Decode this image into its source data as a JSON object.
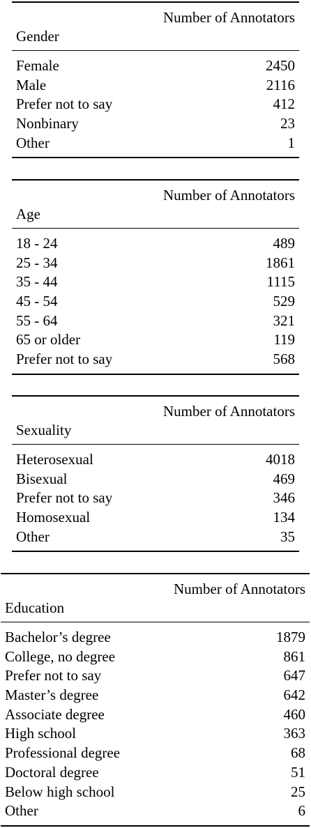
{
  "tables": [
    {
      "category": "Gender",
      "column": "Number of Annotators",
      "rows": [
        {
          "label": "Female",
          "value": "2450"
        },
        {
          "label": "Male",
          "value": "2116"
        },
        {
          "label": "Prefer not to say",
          "value": "412"
        },
        {
          "label": "Nonbinary",
          "value": "23"
        },
        {
          "label": "Other",
          "value": "1"
        }
      ]
    },
    {
      "category": "Age",
      "column": "Number of Annotators",
      "rows": [
        {
          "label": "18 - 24",
          "value": "489"
        },
        {
          "label": "25 - 34",
          "value": "1861"
        },
        {
          "label": "35 - 44",
          "value": "1115"
        },
        {
          "label": "45 - 54",
          "value": "529"
        },
        {
          "label": "55 - 64",
          "value": "321"
        },
        {
          "label": "65 or older",
          "value": "119"
        },
        {
          "label": "Prefer not to say",
          "value": "568"
        }
      ]
    },
    {
      "category": "Sexuality",
      "column": "Number of Annotators",
      "rows": [
        {
          "label": "Heterosexual",
          "value": "4018"
        },
        {
          "label": "Bisexual",
          "value": "469"
        },
        {
          "label": "Prefer not to say",
          "value": "346"
        },
        {
          "label": "Homosexual",
          "value": "134"
        },
        {
          "label": "Other",
          "value": "35"
        }
      ]
    },
    {
      "category": "Education",
      "column": "Number of Annotators",
      "rows": [
        {
          "label": "Bachelor’s degree",
          "value": "1879"
        },
        {
          "label": "College, no degree",
          "value": "861"
        },
        {
          "label": "Prefer not to say",
          "value": "647"
        },
        {
          "label": "Master’s degree",
          "value": "642"
        },
        {
          "label": "Associate degree",
          "value": "460"
        },
        {
          "label": "High school",
          "value": "363"
        },
        {
          "label": "Professional degree",
          "value": "68"
        },
        {
          "label": "Doctoral degree",
          "value": "51"
        },
        {
          "label": "Below high school",
          "value": "25"
        },
        {
          "label": "Other",
          "value": "6"
        }
      ]
    }
  ]
}
